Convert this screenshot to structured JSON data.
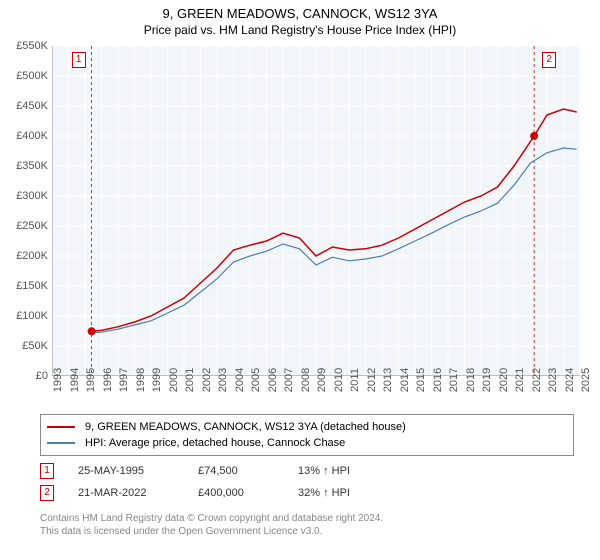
{
  "title": "9, GREEN MEADOWS, CANNOCK, WS12 3YA",
  "subtitle": "Price paid vs. HM Land Registry's House Price Index (HPI)",
  "chart": {
    "type": "line",
    "background_color": "#f2f5fa",
    "grid_color": "#ffffff",
    "axis_color": "#888888",
    "ylim": [
      0,
      550000
    ],
    "ytick_step": 50000,
    "y_ticks": [
      "£0",
      "£50K",
      "£100K",
      "£150K",
      "£200K",
      "£250K",
      "£300K",
      "£350K",
      "£400K",
      "£450K",
      "£500K",
      "£550K"
    ],
    "x_years": [
      1993,
      1994,
      1995,
      1996,
      1997,
      1998,
      1999,
      2000,
      2001,
      2002,
      2003,
      2004,
      2005,
      2006,
      2007,
      2008,
      2009,
      2010,
      2011,
      2012,
      2013,
      2014,
      2015,
      2016,
      2017,
      2018,
      2019,
      2020,
      2021,
      2022,
      2023,
      2024,
      2025
    ],
    "series": [
      {
        "name": "9, GREEN MEADOWS, CANNOCK, WS12 3YA (detached house)",
        "color": "#cc0000",
        "line_width": 1.5,
        "data": [
          [
            1995.4,
            74500
          ],
          [
            1996,
            76000
          ],
          [
            1997,
            82000
          ],
          [
            1998,
            90000
          ],
          [
            1999,
            100000
          ],
          [
            2000,
            115000
          ],
          [
            2001,
            130000
          ],
          [
            2002,
            155000
          ],
          [
            2003,
            180000
          ],
          [
            2004,
            210000
          ],
          [
            2005,
            218000
          ],
          [
            2006,
            225000
          ],
          [
            2007,
            238000
          ],
          [
            2008,
            230000
          ],
          [
            2009,
            200000
          ],
          [
            2010,
            215000
          ],
          [
            2011,
            210000
          ],
          [
            2012,
            212000
          ],
          [
            2013,
            218000
          ],
          [
            2014,
            230000
          ],
          [
            2015,
            245000
          ],
          [
            2016,
            260000
          ],
          [
            2017,
            275000
          ],
          [
            2018,
            290000
          ],
          [
            2019,
            300000
          ],
          [
            2020,
            315000
          ],
          [
            2021,
            350000
          ],
          [
            2022.22,
            400000
          ],
          [
            2023,
            435000
          ],
          [
            2024,
            445000
          ],
          [
            2024.8,
            440000
          ]
        ]
      },
      {
        "name": "HPI: Average price, detached house, Cannock Chase",
        "color": "#4a7fb8",
        "line_width": 1.2,
        "data": [
          [
            1995.4,
            72000
          ],
          [
            1996,
            73000
          ],
          [
            1997,
            78000
          ],
          [
            1998,
            85000
          ],
          [
            1999,
            92000
          ],
          [
            2000,
            105000
          ],
          [
            2001,
            118000
          ],
          [
            2002,
            140000
          ],
          [
            2003,
            162000
          ],
          [
            2004,
            190000
          ],
          [
            2005,
            200000
          ],
          [
            2006,
            208000
          ],
          [
            2007,
            220000
          ],
          [
            2008,
            212000
          ],
          [
            2009,
            185000
          ],
          [
            2010,
            198000
          ],
          [
            2011,
            192000
          ],
          [
            2012,
            195000
          ],
          [
            2013,
            200000
          ],
          [
            2014,
            212000
          ],
          [
            2015,
            225000
          ],
          [
            2016,
            238000
          ],
          [
            2017,
            252000
          ],
          [
            2018,
            265000
          ],
          [
            2019,
            275000
          ],
          [
            2020,
            288000
          ],
          [
            2021,
            318000
          ],
          [
            2022,
            355000
          ],
          [
            2023,
            372000
          ],
          [
            2024,
            380000
          ],
          [
            2024.8,
            378000
          ]
        ]
      }
    ],
    "markers": [
      {
        "id": "1",
        "color": "#cc0000",
        "x": 1995.4,
        "y": 74500,
        "box_pos": "left"
      },
      {
        "id": "2",
        "color": "#cc0000",
        "x": 2022.22,
        "y": 400000,
        "box_pos": "right"
      }
    ],
    "vertical_lines": [
      {
        "x": 1995.4,
        "color": "#cc0000"
      },
      {
        "x": 2022.22,
        "color": "#cc0000"
      }
    ]
  },
  "legend": {
    "items": [
      {
        "color": "#cc0000",
        "label": "9, GREEN MEADOWS, CANNOCK, WS12 3YA (detached house)"
      },
      {
        "color": "#4a7fb8",
        "label": "HPI: Average price, detached house, Cannock Chase"
      }
    ]
  },
  "transactions": [
    {
      "id": "1",
      "color": "#cc0000",
      "date": "25-MAY-1995",
      "price": "£74,500",
      "pct": "13% ↑ HPI"
    },
    {
      "id": "2",
      "color": "#cc0000",
      "date": "21-MAR-2022",
      "price": "£400,000",
      "pct": "32% ↑ HPI"
    }
  ],
  "footer": {
    "line1": "Contains HM Land Registry data © Crown copyright and database right 2024.",
    "line2": "This data is licensed under the Open Government Licence v3.0."
  }
}
